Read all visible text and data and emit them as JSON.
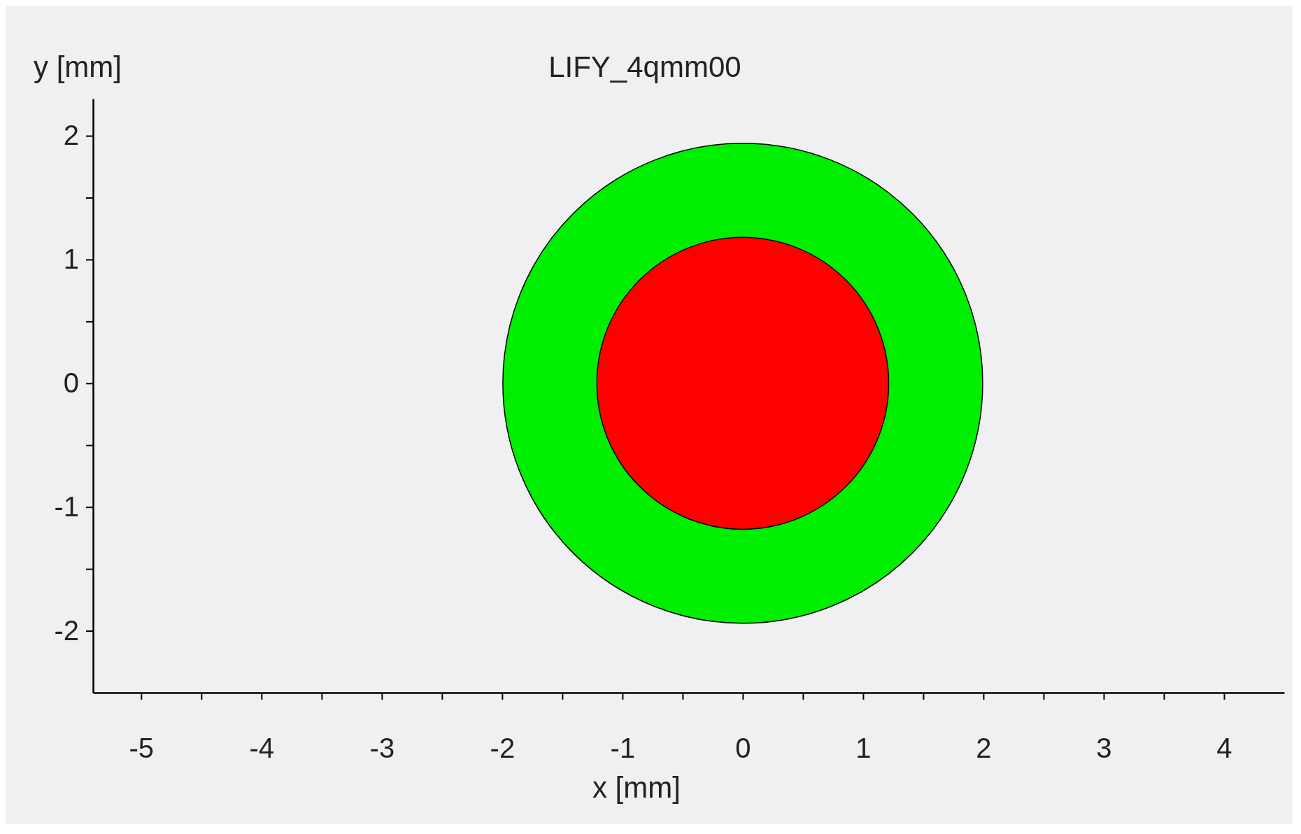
{
  "chart_data": {
    "type": "bubble",
    "title": "LIFY_4qmm00",
    "xlabel": "x [mm]",
    "ylabel": "y [mm]",
    "xlim": [
      -5.4,
      4.5
    ],
    "ylim": [
      -2.5,
      2.3
    ],
    "xticks": [
      -5,
      {
        "value": -4.5,
        "label": null
      },
      -4,
      {
        "value": -3.5,
        "label": null
      },
      -3,
      {
        "value": -2.5,
        "label": null
      },
      -2,
      {
        "value": -1.5,
        "label": null
      },
      -1,
      {
        "value": -0.5,
        "label": null
      },
      0,
      {
        "value": 0.5,
        "label": null
      },
      1,
      {
        "value": 1.5,
        "label": null
      },
      2,
      {
        "value": 2.5,
        "label": null
      },
      3,
      {
        "value": 3.5,
        "label": null
      },
      4
    ],
    "yticks": [
      -2,
      {
        "value": -1.5,
        "label": null
      },
      -1,
      {
        "value": -0.5,
        "label": null
      },
      0,
      {
        "value": 0.5,
        "label": null
      },
      1,
      {
        "value": 1.5,
        "label": null
      },
      2
    ],
    "grid": false,
    "series": [
      {
        "color": "#00ee00",
        "x": [
          0
        ],
        "values": [
          0
        ],
        "sizes": [
          1
        ]
      },
      {
        "color": "#ff0000",
        "x": [
          0
        ],
        "values": [
          0
        ],
        "sizes": [
          0.37
        ]
      }
    ]
  }
}
